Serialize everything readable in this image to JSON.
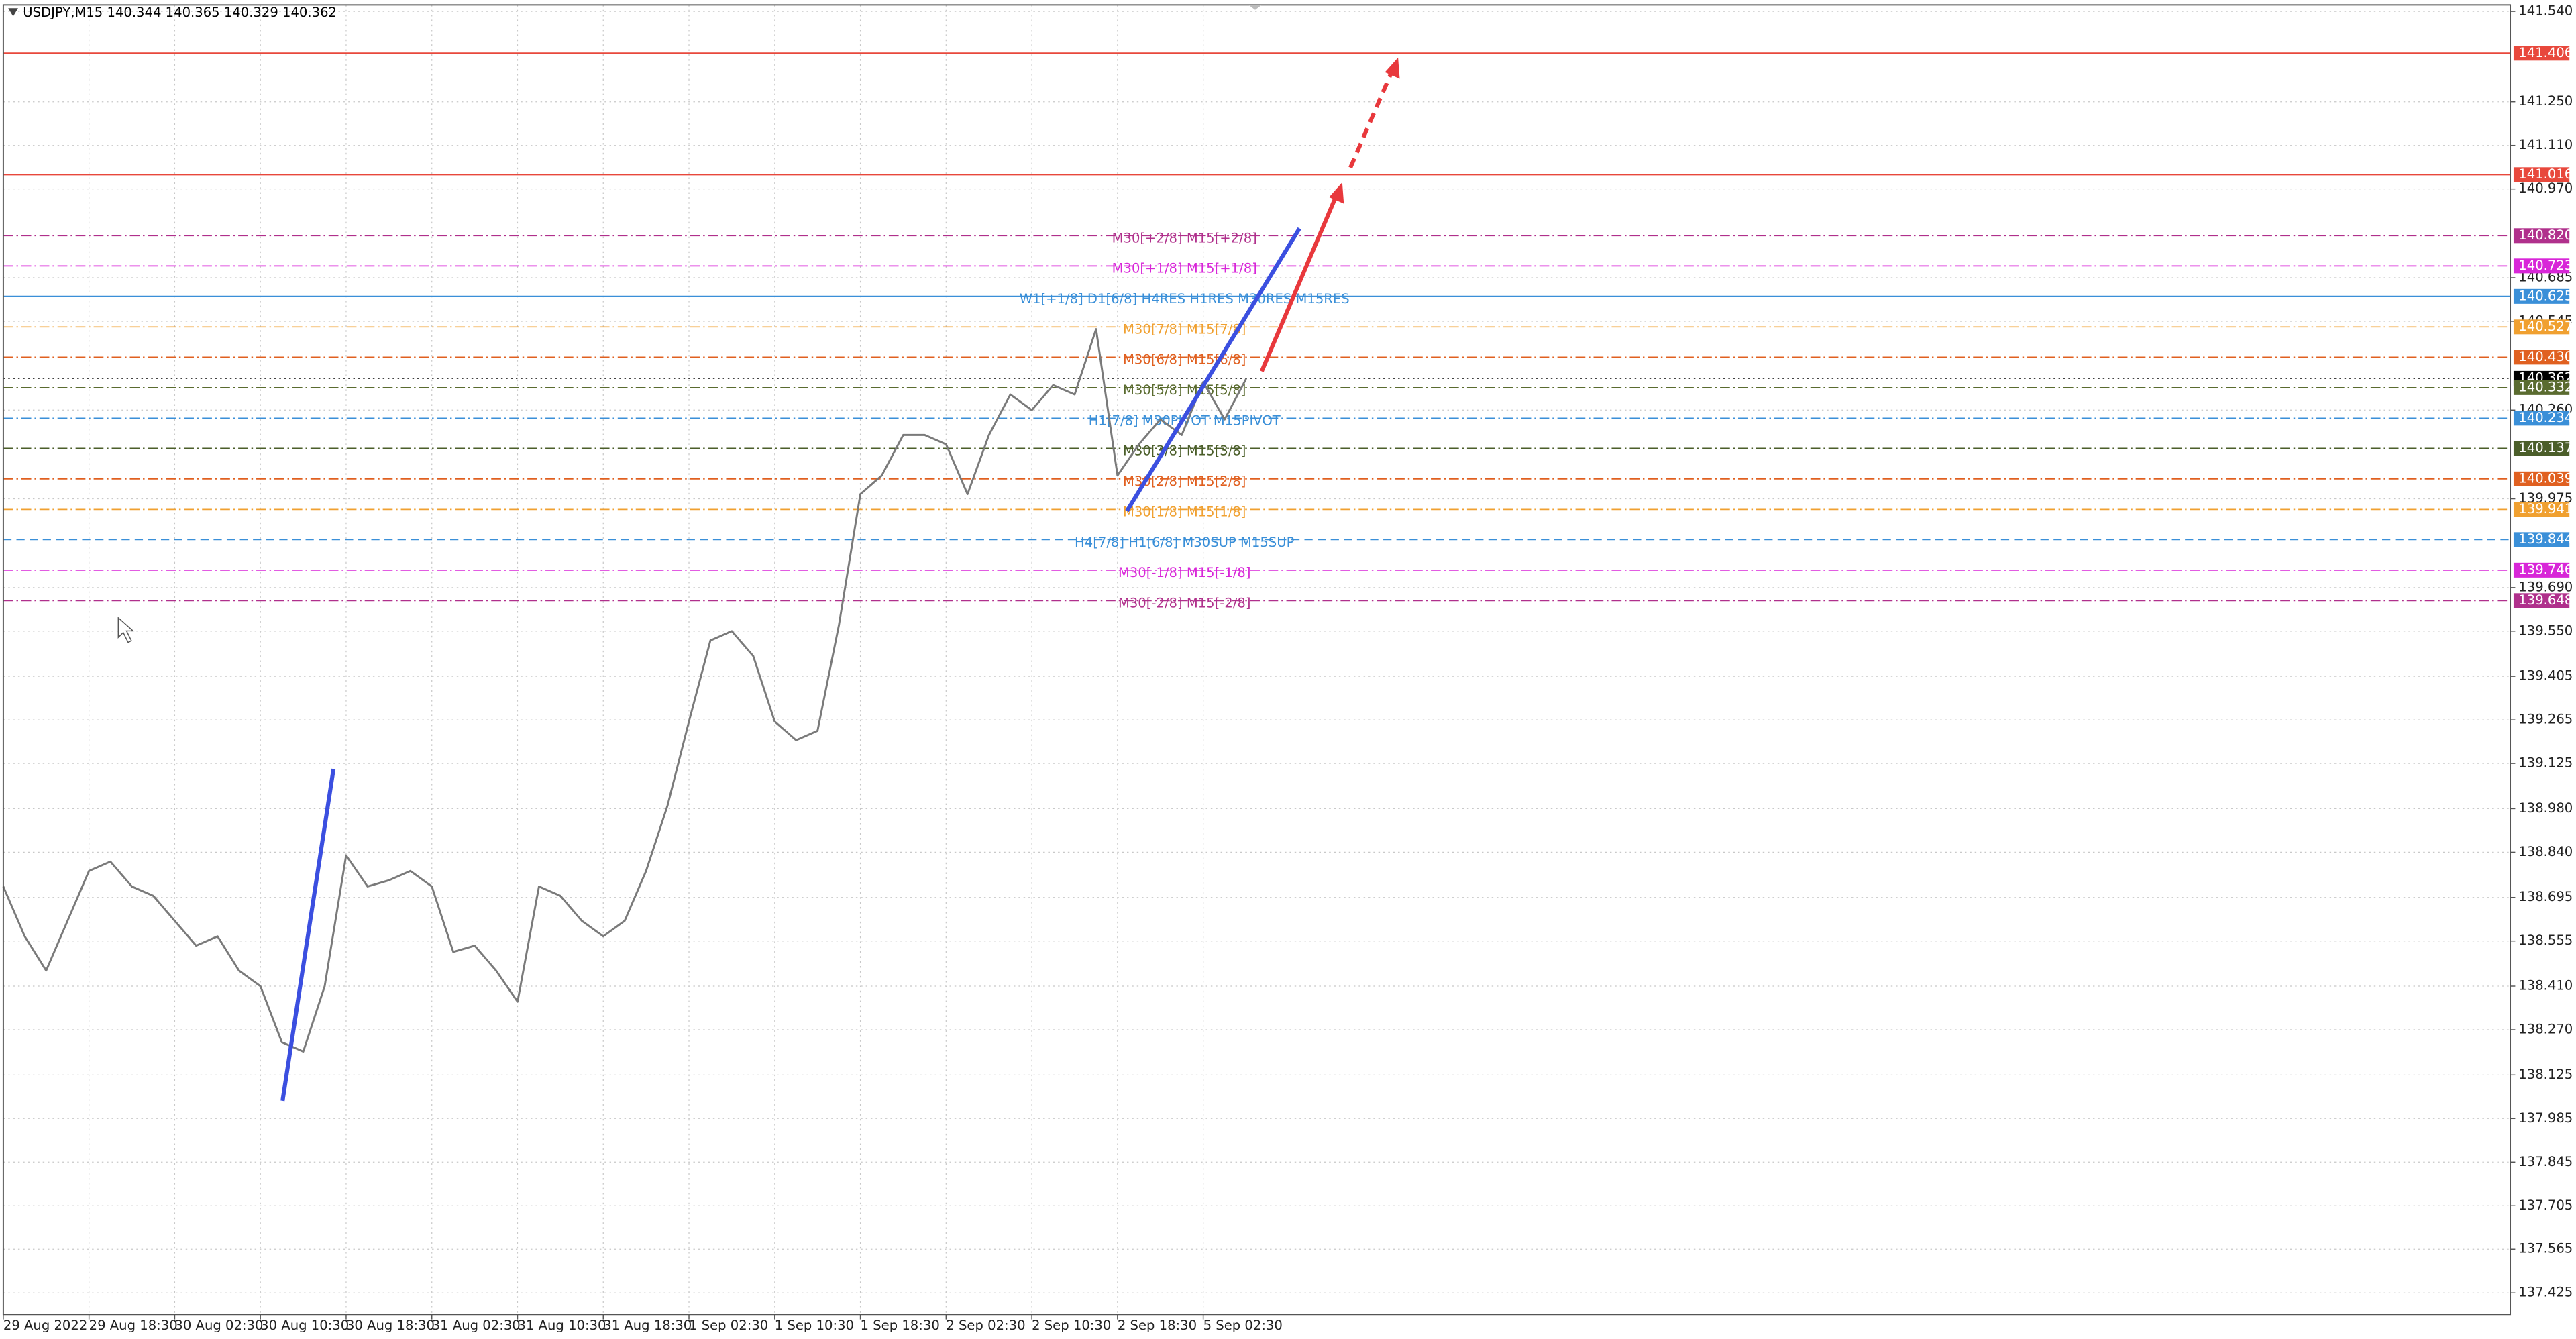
{
  "chart_data": {
    "type": "line",
    "title": "USDJPY,M15 140.344 140.365 140.329 140.362",
    "x": [
      0,
      8,
      16,
      24,
      32,
      40,
      48,
      56,
      64,
      72,
      80,
      88,
      96,
      104,
      112,
      120,
      128,
      136,
      144,
      152,
      160,
      168,
      176,
      184,
      192,
      200,
      208,
      216,
      224,
      232,
      240,
      248,
      256,
      264,
      272,
      280,
      288,
      296,
      304,
      312,
      320,
      328,
      336,
      344,
      352,
      360,
      368,
      376,
      384,
      392,
      400,
      408,
      416,
      424,
      432,
      440,
      448,
      456,
      464
    ],
    "series": [
      {
        "color": "#7a7a7a",
        "values": [
          138.73,
          138.57,
          138.46,
          138.62,
          138.78,
          138.81,
          138.73,
          138.7,
          138.62,
          138.54,
          138.57,
          138.46,
          138.41,
          138.23,
          138.2,
          138.41,
          138.83,
          138.73,
          138.75,
          138.78,
          138.73,
          138.52,
          138.54,
          138.46,
          138.36,
          138.73,
          138.7,
          138.62,
          138.57,
          138.62,
          138.78,
          138.99,
          139.26,
          139.52,
          139.55,
          139.47,
          139.26,
          139.2,
          139.23,
          139.57,
          139.99,
          140.05,
          140.18,
          140.18,
          140.15,
          139.99,
          140.18,
          140.31,
          140.26,
          140.34,
          140.31,
          140.52,
          140.05,
          140.15,
          140.23,
          140.18,
          140.35,
          140.23,
          140.36
        ]
      }
    ],
    "xlim": [
      0,
      936
    ],
    "xticks": [
      {
        "value": 0,
        "label": "29 Aug 2022"
      },
      {
        "value": 32,
        "label": "29 Aug 18:30"
      },
      {
        "value": 64,
        "label": "30 Aug 02:30"
      },
      {
        "value": 96,
        "label": "30 Aug 10:30"
      },
      {
        "value": 128,
        "label": "30 Aug 18:30"
      },
      {
        "value": 160,
        "label": "31 Aug 02:30"
      },
      {
        "value": 192,
        "label": "31 Aug 10:30"
      },
      {
        "value": 224,
        "label": "31 Aug 18:30"
      },
      {
        "value": 256,
        "label": "1 Sep 02:30"
      },
      {
        "value": 288,
        "label": "1 Sep 10:30"
      },
      {
        "value": 320,
        "label": "1 Sep 18:30"
      },
      {
        "value": 352,
        "label": "2 Sep 02:30"
      },
      {
        "value": 384,
        "label": "2 Sep 10:30"
      },
      {
        "value": 416,
        "label": "2 Sep 18:30"
      },
      {
        "value": 448,
        "label": "5 Sep 02:30"
      }
    ],
    "ylim": [
      137.356,
      141.561
    ],
    "yticks": [
      {
        "value": 141.54,
        "label": "141.540"
      },
      {
        "value": 141.25,
        "label": "141.250"
      },
      {
        "value": 141.11,
        "label": "141.110"
      },
      {
        "value": 140.97,
        "label": "140.970"
      },
      {
        "value": 140.685,
        "label": "140.685"
      },
      {
        "value": 140.545,
        "label": "140.545"
      },
      {
        "value": 140.26,
        "label": "140.260"
      },
      {
        "value": 139.975,
        "label": "139.975"
      },
      {
        "value": 139.69,
        "label": "139.690"
      },
      {
        "value": 139.55,
        "label": "139.550"
      },
      {
        "value": 139.405,
        "label": "139.405"
      },
      {
        "value": 139.265,
        "label": "139.265"
      },
      {
        "value": 139.125,
        "label": "139.125"
      },
      {
        "value": 138.98,
        "label": "138.980"
      },
      {
        "value": 138.84,
        "label": "138.840"
      },
      {
        "value": 138.695,
        "label": "138.695"
      },
      {
        "value": 138.555,
        "label": "138.555"
      },
      {
        "value": 138.41,
        "label": "138.410"
      },
      {
        "value": 138.27,
        "label": "138.270"
      },
      {
        "value": 138.125,
        "label": "138.125"
      },
      {
        "value": 137.985,
        "label": "137.985"
      },
      {
        "value": 137.845,
        "label": "137.845"
      },
      {
        "value": 137.705,
        "label": "137.705"
      },
      {
        "value": 137.565,
        "label": "137.565"
      },
      {
        "value": 137.425,
        "label": "137.425"
      }
    ],
    "grid": true,
    "levels": [
      {
        "price": {
          "value": 141.406,
          "label": "141.406"
        },
        "color": "#e8483c",
        "style": "solid"
      },
      {
        "price": {
          "value": 141.016,
          "label": "141.016"
        },
        "color": "#e8483c",
        "style": "solid"
      },
      {
        "price": {
          "value": 140.82,
          "label": "140.820"
        },
        "color": "#b0308c",
        "style": "dashdot",
        "text": "M30[+2/8] M15[+2/8]"
      },
      {
        "price": {
          "value": 140.723,
          "label": "140.723"
        },
        "color": "#d826d8",
        "style": "dashdot",
        "text": "M30[+1/8] M15[+1/8]"
      },
      {
        "price": {
          "value": 140.625,
          "label": "140.625"
        },
        "color": "#3a8fd8",
        "style": "solid",
        "text": "W1[+1/8] D1[6/8] H4RES H1RES M30RES M15RES"
      },
      {
        "price": {
          "value": 140.527,
          "label": "140.527"
        },
        "color": "#f0a030",
        "style": "dashdot",
        "text": "M30[7/8] M15[7/8]"
      },
      {
        "price": {
          "value": 140.43,
          "label": "140.430"
        },
        "color": "#e06020",
        "style": "dashdot",
        "text": "M30[6/8] M15[6/8]"
      },
      {
        "price": {
          "value": 140.362,
          "label": "140.362"
        },
        "color": "#000000",
        "style": "dotted"
      },
      {
        "price": {
          "value": 140.332,
          "label": "140.332"
        },
        "color": "#5a6b2f",
        "style": "dashdot",
        "text": "M30[5/8] M15[5/8]"
      },
      {
        "price": {
          "value": 140.234,
          "label": "140.234"
        },
        "color": "#3a8fd8",
        "style": "dashdot",
        "text": "H1[7/8] M30PIVOT M15PIVOT"
      },
      {
        "price": {
          "value": 140.137,
          "label": "140.137"
        },
        "color": "#4b5e2a",
        "style": "dashdot",
        "text": "M30[3/8] M15[3/8]"
      },
      {
        "price": {
          "value": 140.039,
          "label": "140.039"
        },
        "color": "#e06020",
        "style": "dashdot",
        "text": "M30[2/8] M15[2/8]"
      },
      {
        "price": {
          "value": 139.941,
          "label": "139.941"
        },
        "color": "#f0a030",
        "style": "dashdot",
        "text": "M30[1/8] M15[1/8]"
      },
      {
        "price": {
          "value": 139.844,
          "label": "139.844"
        },
        "color": "#3a8fd8",
        "style": "dashed",
        "text": "H4[7/8] H1[6/8] M30SUP M15SUP"
      },
      {
        "price": {
          "value": 139.746,
          "label": "139.746"
        },
        "color": "#d826d8",
        "style": "dashdot",
        "text": "M30[-1/8] M15[-1/8]"
      },
      {
        "price": {
          "value": 139.648,
          "label": "139.648"
        },
        "color": "#b0308c",
        "style": "dashdot",
        "text": "M30[-2/8] M15[-2/8]"
      }
    ]
  }
}
